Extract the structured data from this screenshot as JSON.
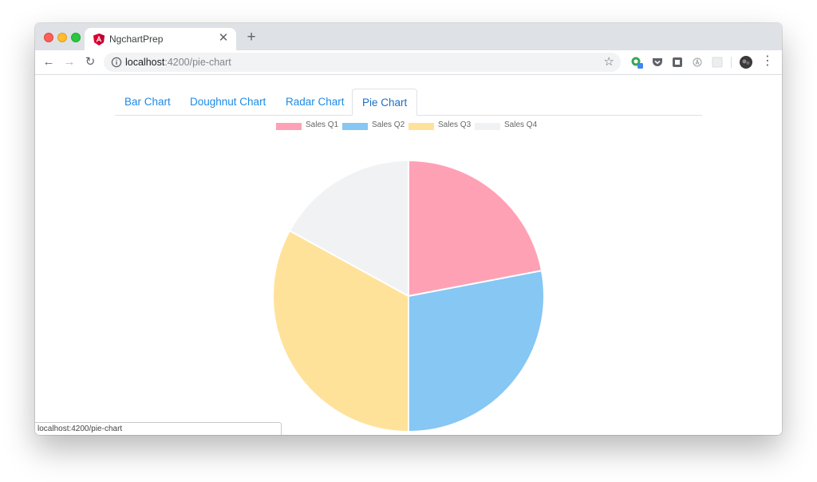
{
  "browser": {
    "tab_title": "NgchartPrep",
    "url_host": "localhost",
    "url_path": ":4200/pie-chart",
    "status_text": "localhost:4200/pie-chart"
  },
  "icons": {
    "favicon": "angular-icon",
    "close": "close-icon",
    "new_tab": "plus-icon",
    "back": "back-arrow-icon",
    "forward": "forward-arrow-icon",
    "reload": "reload-icon",
    "info": "info-icon",
    "star": "star-icon",
    "menu": "more-vert-icon",
    "close_glyph": "✕",
    "plus_glyph": "+",
    "back_glyph": "←",
    "forward_glyph": "→",
    "reload_glyph": "↻",
    "star_glyph": "☆",
    "menu_glyph": "⋮"
  },
  "nav": {
    "tabs": [
      {
        "label": "Bar Chart",
        "active": false
      },
      {
        "label": "Doughnut Chart",
        "active": false
      },
      {
        "label": "Radar Chart",
        "active": false
      },
      {
        "label": "Pie Chart",
        "active": true
      }
    ]
  },
  "chart_data": {
    "type": "pie",
    "labels": [
      "Sales Q1",
      "Sales Q2",
      "Sales Q3",
      "Sales Q4"
    ],
    "values": [
      22,
      28,
      33,
      17
    ],
    "colors": [
      "#ffa1b5",
      "#86c7f3",
      "#ffe29a",
      "#f1f2f4"
    ],
    "legend_position": "top"
  }
}
